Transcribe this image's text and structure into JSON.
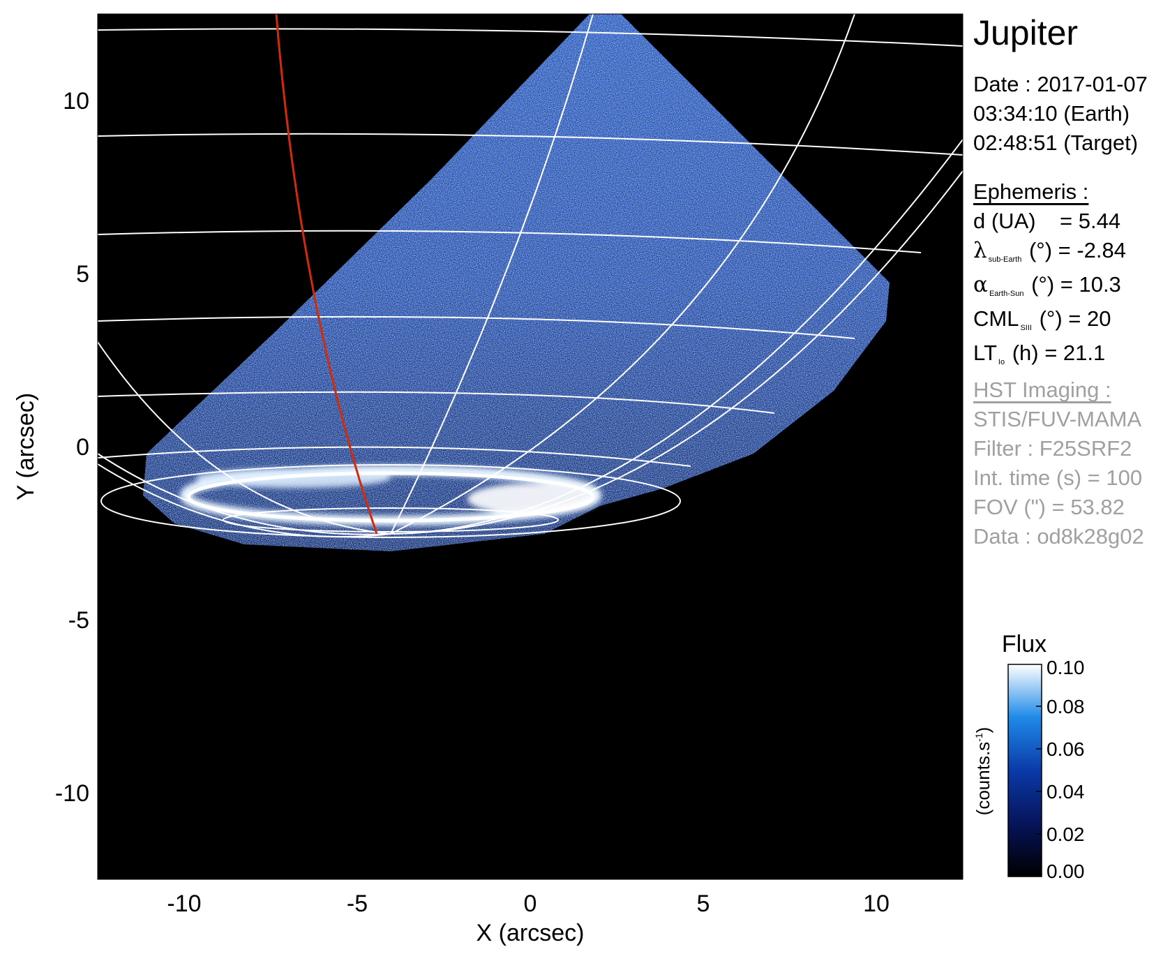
{
  "figure": {
    "target": "Jupiter",
    "date_label": "Date : 2017-01-07",
    "earth_time": "03:34:10 (Earth)",
    "target_time": "02:48:51 (Target)",
    "ephemeris_header": "Ephemeris :",
    "ephemeris": {
      "d_label": "d (UA)",
      "d_value": "= 5.44",
      "lambda_symbol": "λ",
      "lambda_sub": "sub-Earth",
      "lambda_value": "(°) = -2.84",
      "alpha_symbol": "α",
      "alpha_sub": "Earth-Sun",
      "alpha_value": "(°) = 10.3",
      "cml_label": "CML",
      "cml_sub": "SIII",
      "cml_value": "(°) = 20",
      "lt_label": "LT",
      "lt_sub": "Io",
      "lt_value": "(h) = 21.1"
    },
    "imaging_header": "HST Imaging :",
    "instrument": "STIS/FUV-MAMA",
    "filter": "Filter : F25SRF2",
    "int_time": "Int. time (s) = 100",
    "fov": "FOV (\") = 53.82",
    "data_id": "Data : od8k28g02"
  },
  "axes": {
    "xlabel": "X (arcsec)",
    "ylabel": "Y (arcsec)",
    "xlim": [
      -12.5,
      12.5
    ],
    "ylim": [
      -12.5,
      12.5
    ],
    "xticks": [
      "-10",
      "-5",
      "0",
      "5",
      "10"
    ],
    "yticks": [
      "10",
      "5",
      "0",
      "-5",
      "-10"
    ]
  },
  "colorbar": {
    "title": "Flux",
    "unit_label": "(counts.s",
    "unit_exp": "-1",
    "unit_close": ")",
    "ticks": [
      "0.10",
      "0.08",
      "0.06",
      "0.04",
      "0.02",
      "0.00"
    ],
    "range": [
      0.0,
      0.1
    ]
  },
  "colors": {
    "background": "#000000",
    "grid": "#ffffff",
    "io_footprint": "#d22a0a",
    "emission_low": "#0a2a8c",
    "emission_high": "#e8f4ff"
  }
}
